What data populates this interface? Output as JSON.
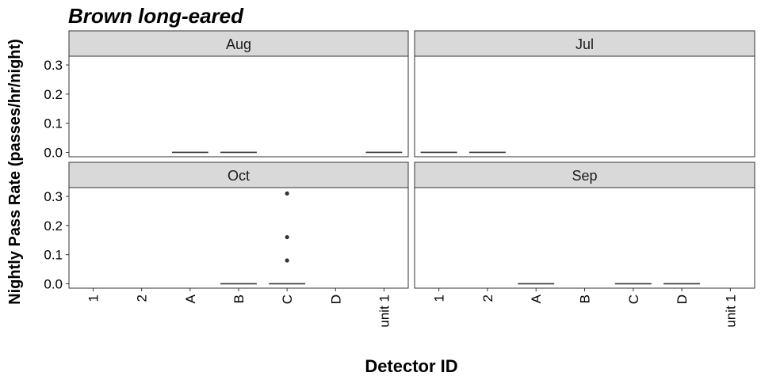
{
  "chart_data": {
    "type": "box",
    "title": "Brown long-eared",
    "xlabel": "Detector ID",
    "ylabel": "Nightly Pass Rate (passes/hr/night)",
    "categories": [
      "1",
      "2",
      "A",
      "B",
      "C",
      "D",
      "unit 1"
    ],
    "y_ticks": [
      "0.0",
      "0.1",
      "0.2",
      "0.3"
    ],
    "ylim": [
      -0.015,
      0.33
    ],
    "panels": [
      {
        "name": "Aug",
        "boxes": [
          {
            "category": "A",
            "median": 0.0
          },
          {
            "category": "B",
            "median": 0.0
          },
          {
            "category": "unit 1",
            "median": 0.0
          }
        ],
        "outliers": []
      },
      {
        "name": "Jul",
        "boxes": [
          {
            "category": "1",
            "median": 0.0
          },
          {
            "category": "2",
            "median": 0.0
          }
        ],
        "outliers": []
      },
      {
        "name": "Oct",
        "boxes": [
          {
            "category": "B",
            "median": 0.0
          },
          {
            "category": "C",
            "median": 0.0
          }
        ],
        "outliers": [
          {
            "category": "C",
            "value": 0.31
          },
          {
            "category": "C",
            "value": 0.16
          },
          {
            "category": "C",
            "value": 0.08
          }
        ]
      },
      {
        "name": "Sep",
        "boxes": [
          {
            "category": "A",
            "median": 0.0
          },
          {
            "category": "C",
            "median": 0.0
          },
          {
            "category": "D",
            "median": 0.0
          }
        ],
        "outliers": []
      }
    ],
    "grid": false,
    "legend": "none"
  }
}
